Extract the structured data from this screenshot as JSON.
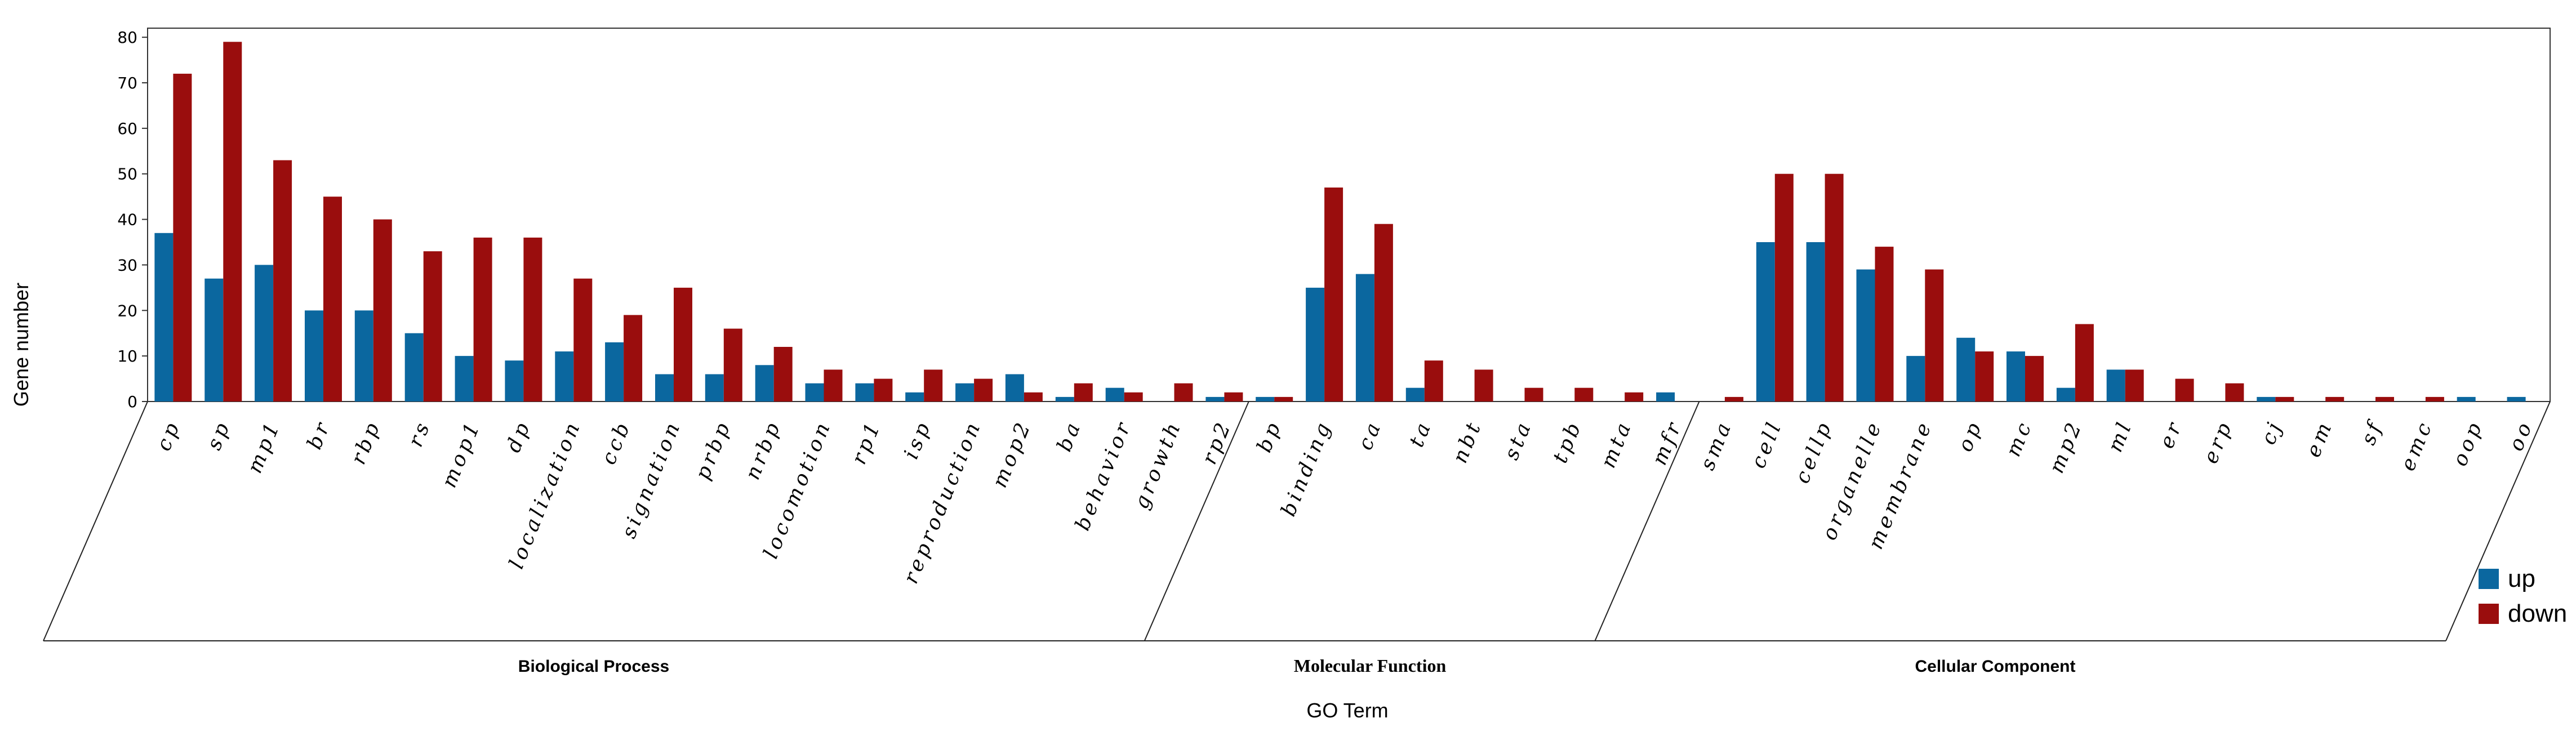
{
  "chart_data": {
    "type": "bar",
    "ylabel": "Gene number",
    "xlabel": "GO Term",
    "ylim": [
      0,
      82
    ],
    "yticks": [
      0,
      10,
      20,
      30,
      40,
      50,
      60,
      70,
      80
    ],
    "groups": [
      {
        "name": "Biological Process",
        "start": 0,
        "end": 22
      },
      {
        "name": "Molecular Function",
        "start": 22,
        "end": 31
      },
      {
        "name": "Cellular Component",
        "start": 31,
        "end": 47
      }
    ],
    "categories": [
      "cp",
      "sp",
      "mp1",
      "br",
      "rbp",
      "rs",
      "mop1",
      "dp",
      "localization",
      "ccb",
      "signation",
      "prbp",
      "nrbp",
      "locomotion",
      "rp1",
      "isp",
      "reproduction",
      "mop2",
      "ba",
      "behavior",
      "growth",
      "rp2",
      "bp",
      "binding",
      "ca",
      "ta",
      "nbt",
      "sta",
      "tpb",
      "mta",
      "mfr",
      "sma",
      "cell",
      "cellp",
      "organelle",
      "membrane",
      "op",
      "mc",
      "mp2",
      "ml",
      "er",
      "erp",
      "cj",
      "em",
      "sf",
      "emc",
      "oop",
      "oo"
    ],
    "series": [
      {
        "name": "up",
        "color": "#0b679f",
        "values": [
          37,
          27,
          30,
          20,
          20,
          15,
          10,
          9,
          11,
          13,
          6,
          6,
          8,
          4,
          4,
          2,
          4,
          6,
          1,
          3,
          0,
          1,
          1,
          25,
          28,
          3,
          0,
          0,
          0,
          0,
          2,
          0,
          35,
          35,
          29,
          10,
          14,
          11,
          3,
          7,
          0,
          0,
          1,
          0,
          0,
          0,
          1,
          1
        ]
      },
      {
        "name": "down",
        "color": "#9a0d0d",
        "values": [
          72,
          79,
          53,
          45,
          40,
          33,
          36,
          36,
          27,
          19,
          25,
          16,
          12,
          7,
          5,
          7,
          5,
          2,
          4,
          2,
          4,
          2,
          1,
          47,
          39,
          9,
          7,
          3,
          3,
          2,
          0,
          1,
          50,
          50,
          34,
          29,
          11,
          10,
          17,
          7,
          5,
          4,
          1,
          1,
          1,
          1,
          0,
          0
        ]
      }
    ],
    "legend_position": "bottom-right",
    "grid": false
  }
}
